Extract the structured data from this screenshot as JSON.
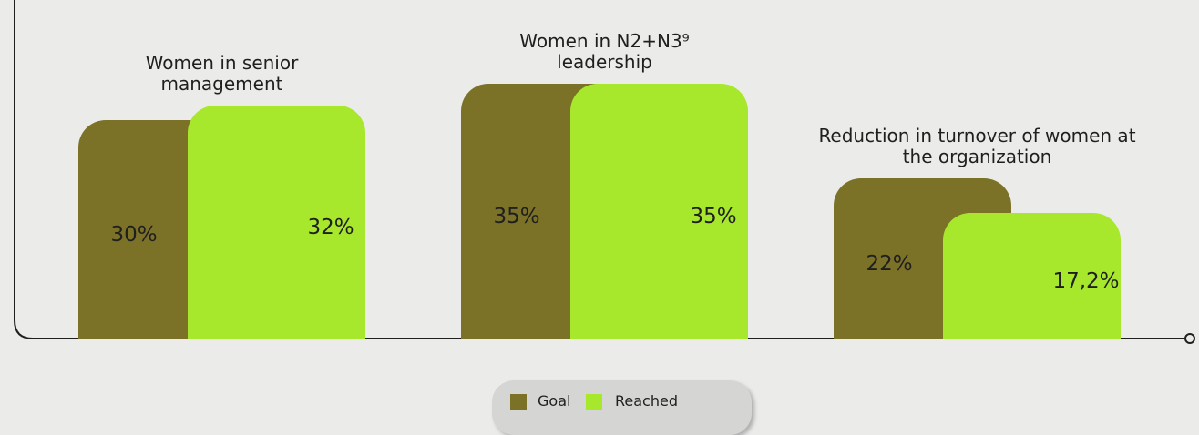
{
  "chart_data": {
    "type": "bar",
    "categories": [
      "Women in senior management",
      "Women in N2+N3⁹ leadership",
      "Reduction in turnover of women at the organization"
    ],
    "series": [
      {
        "name": "Goal",
        "color": "#7b7228",
        "values": [
          30,
          35,
          22
        ],
        "value_labels": [
          "30%",
          "35%",
          "22%"
        ]
      },
      {
        "name": "Reached",
        "color": "#a8e82c",
        "values": [
          32,
          35,
          17.2
        ],
        "value_labels": [
          "32%",
          "35%",
          "17,2%"
        ]
      }
    ]
  }
}
